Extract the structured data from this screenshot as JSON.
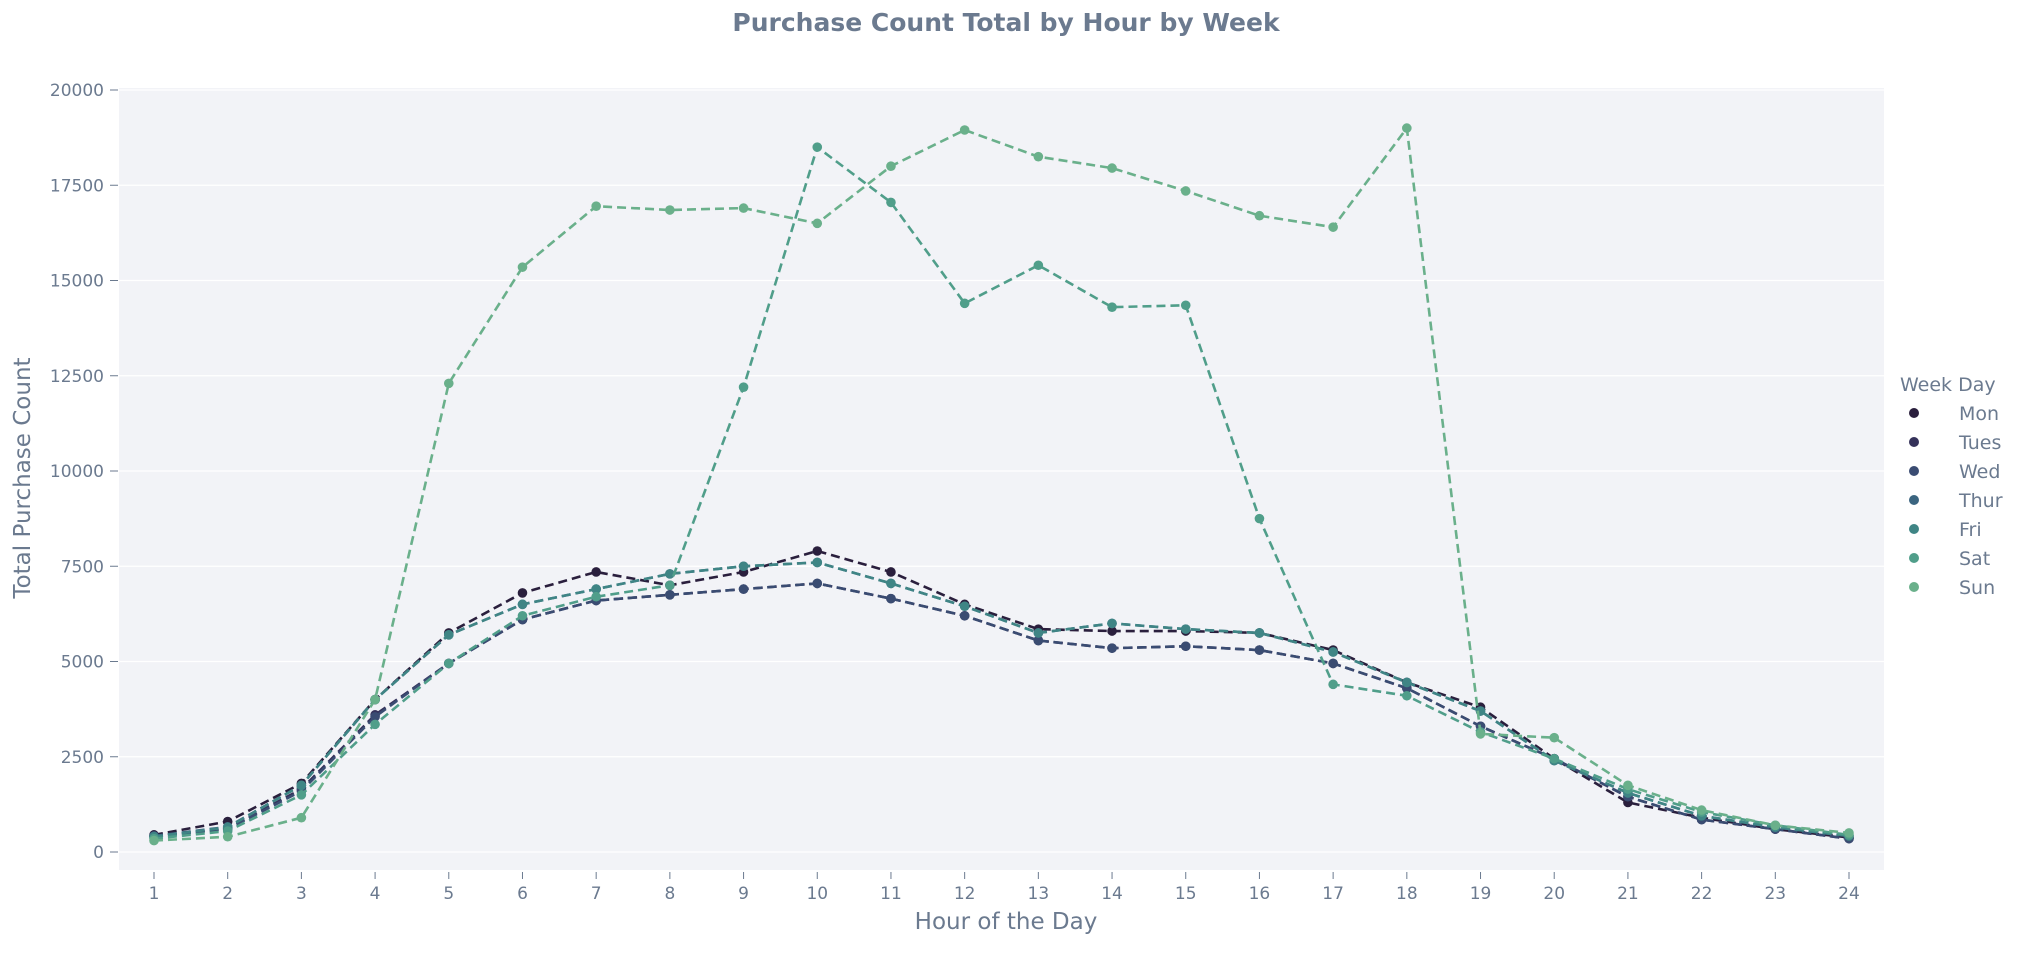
{
  "chart_data": {
    "type": "line",
    "title": "Purchase Count Total by Hour by Week",
    "xlabel": "Hour of the Day",
    "ylabel": "Total Purchase Count",
    "legend_title": "Week Day",
    "legend_position": "right",
    "grid": true,
    "ylim": [
      0,
      20000
    ],
    "yticks": [
      0,
      2500,
      5000,
      7500,
      10000,
      12500,
      15000,
      17500,
      20000
    ],
    "x": [
      1,
      2,
      3,
      4,
      5,
      6,
      7,
      8,
      9,
      10,
      11,
      12,
      13,
      14,
      15,
      16,
      17,
      18,
      19,
      20,
      21,
      22,
      23,
      24
    ],
    "series": [
      {
        "name": "Mon",
        "color": "#2a1f3d",
        "values": [
          450,
          800,
          1800,
          4000,
          5750,
          6800,
          7350,
          7000,
          7350,
          7900,
          7350,
          6500,
          5850,
          5800,
          5800,
          5750,
          5300,
          4450,
          3800,
          2450,
          1300,
          900,
          600,
          380
        ]
      },
      {
        "name": "Tues",
        "color": "#35325a",
        "values": [
          420,
          620,
          1650,
          3600,
          4950,
          6100,
          6600,
          6750,
          6900,
          7050,
          6650,
          6200,
          5550,
          5350,
          5400,
          5300,
          4950,
          4300,
          3300,
          2450,
          1450,
          850,
          600,
          350
        ]
      },
      {
        "name": "Wed",
        "color": "#3a4c72",
        "values": [
          400,
          600,
          1600,
          3550,
          4950,
          6100,
          6600,
          6750,
          6900,
          7050,
          6650,
          6200,
          5550,
          5350,
          5400,
          5300,
          4950,
          4300,
          3300,
          2450,
          1450,
          850,
          600,
          350
        ]
      },
      {
        "name": "Thur",
        "color": "#3b6580",
        "values": [
          420,
          660,
          1750,
          4000,
          5700,
          6500,
          6900,
          7300,
          7500,
          7600,
          7050,
          6450,
          5750,
          6000,
          5850,
          5750,
          5250,
          4450,
          3700,
          2400,
          1550,
          950,
          650,
          420
        ]
      },
      {
        "name": "Fri",
        "color": "#3f8585",
        "values": [
          400,
          650,
          1750,
          4000,
          5700,
          6500,
          6900,
          7300,
          7500,
          7600,
          7050,
          6450,
          5750,
          6000,
          5850,
          5750,
          5250,
          4450,
          3700,
          2400,
          1550,
          950,
          650,
          420
        ]
      },
      {
        "name": "Sat",
        "color": "#509e8a",
        "values": [
          350,
          550,
          1500,
          3350,
          4950,
          6200,
          6700,
          7000,
          12200,
          18500,
          17050,
          14400,
          15400,
          14300,
          14350,
          8750,
          4400,
          4100,
          3150,
          2450,
          1650,
          1050,
          700,
          450
        ]
      },
      {
        "name": "Sun",
        "color": "#6ab08b",
        "values": [
          300,
          400,
          900,
          4000,
          12300,
          15350,
          16950,
          16850,
          16900,
          16500,
          18000,
          18950,
          18250,
          17950,
          17350,
          16700,
          16400,
          19000,
          3100,
          3000,
          1750,
          1100,
          700,
          500
        ]
      }
    ]
  }
}
